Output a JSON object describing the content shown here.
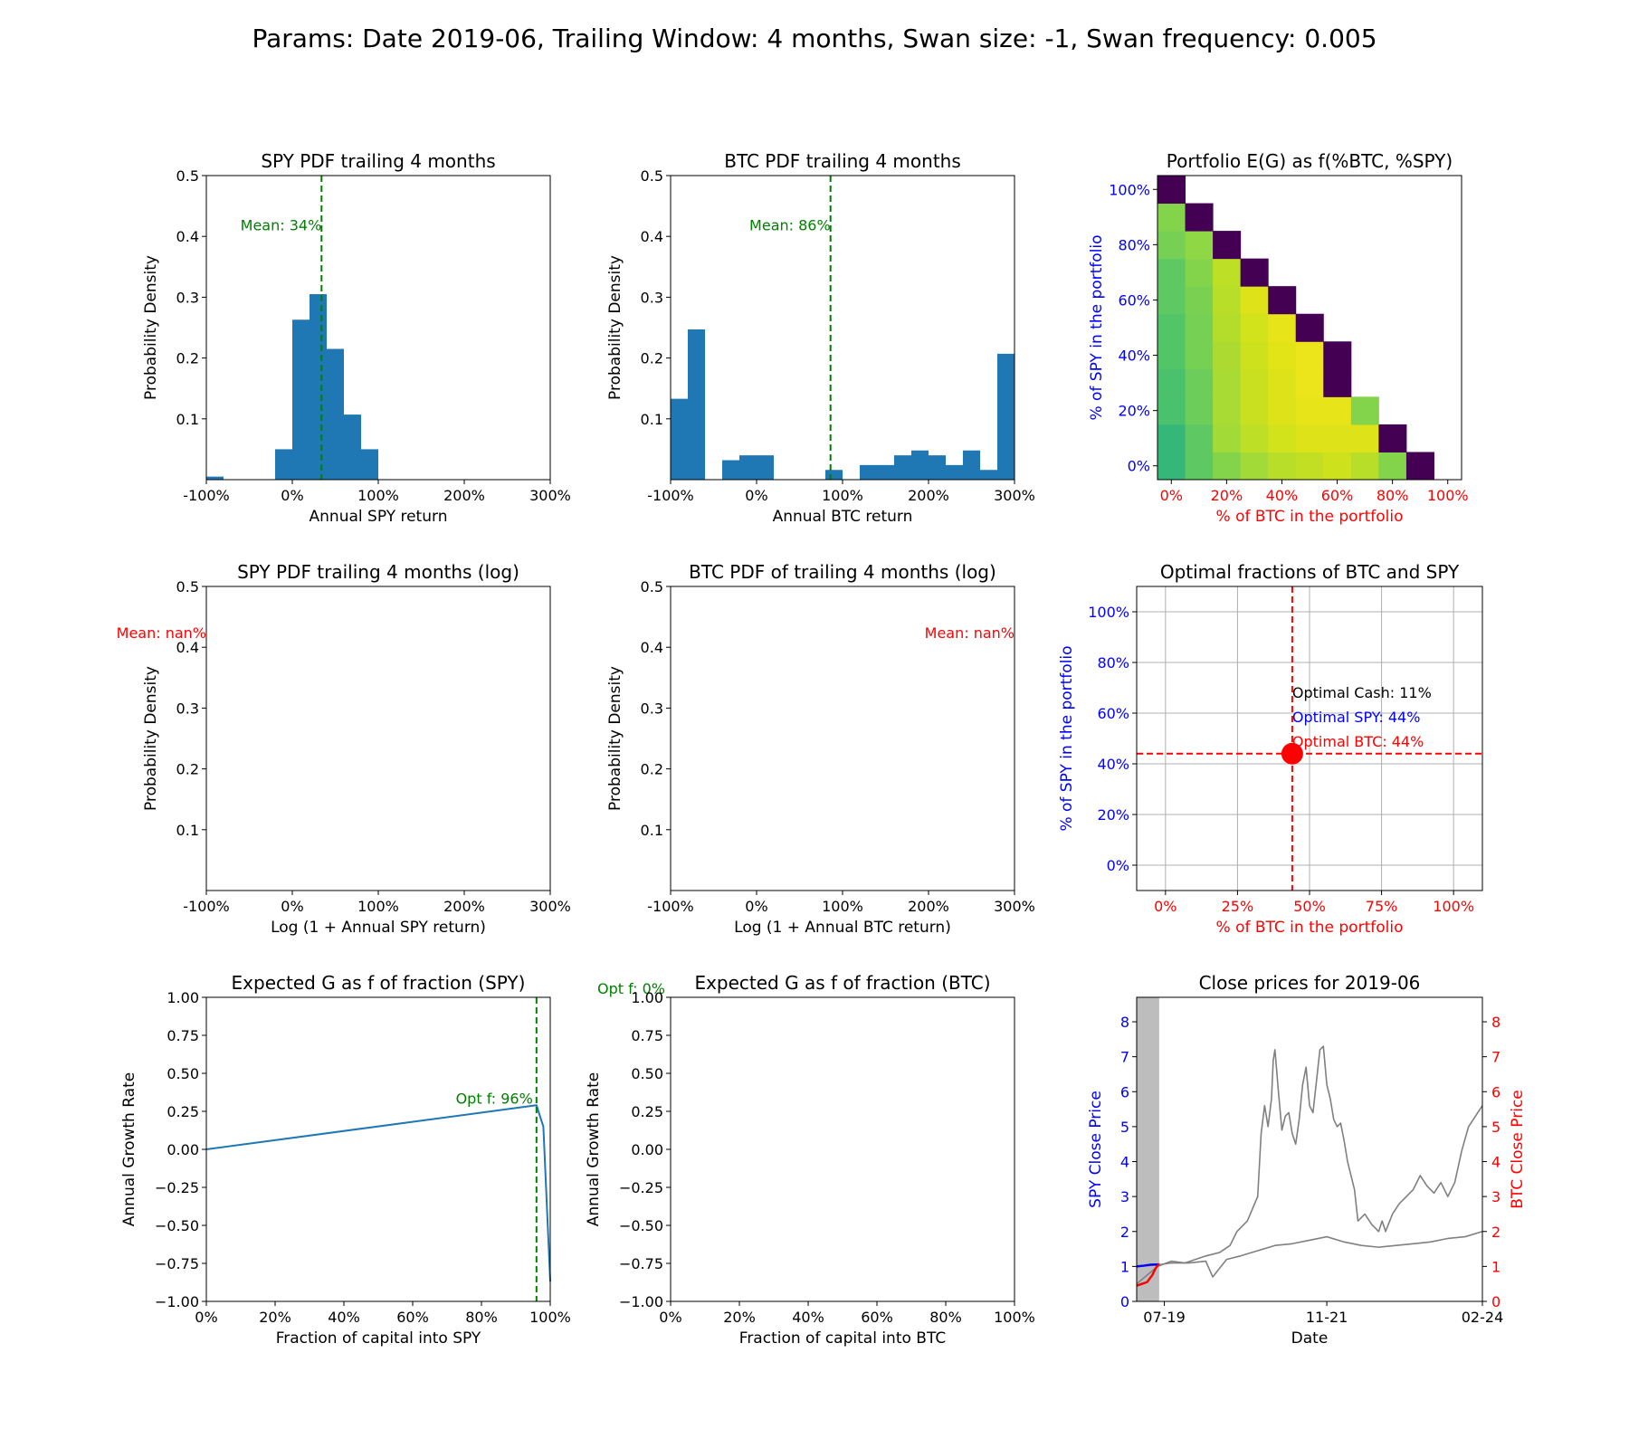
{
  "suptitle": "Params: Date 2019-06, Trailing Window:  4 months,  Swan size: -1, Swan frequency: 0.005",
  "colors": {
    "bar": "#1f77b4",
    "mean_line": "#008000",
    "nan_text": "#ff0000",
    "spy": "#0000ff",
    "btc": "#ff0000",
    "gray_series": "#808080",
    "window_shade": "#bdbdbd"
  },
  "chart_data": [
    {
      "id": "spy_pdf",
      "type": "bar",
      "title": "SPY PDF trailing 4 months",
      "xlabel": "Annual SPY return",
      "ylabel": "Probability Density",
      "xlim": [
        -1.0,
        3.0
      ],
      "ylim": [
        0,
        0.5
      ],
      "xticks": [
        -1.0,
        0.0,
        1.0,
        2.0,
        3.0
      ],
      "xtick_labels": [
        "-100%",
        "0%",
        "100%",
        "200%",
        "300%"
      ],
      "yticks": [
        0.1,
        0.2,
        0.3,
        0.4,
        0.5
      ],
      "ytick_labels": [
        "0.1",
        "0.2",
        "0.3",
        "0.4",
        "0.5"
      ],
      "bin_width": 0.2,
      "bins": [
        {
          "x0": -1.0,
          "value": 0.005
        },
        {
          "x0": -0.2,
          "value": 0.05
        },
        {
          "x0": 0.0,
          "value": 0.263
        },
        {
          "x0": 0.2,
          "value": 0.305
        },
        {
          "x0": 0.4,
          "value": 0.215
        },
        {
          "x0": 0.6,
          "value": 0.107
        },
        {
          "x0": 0.8,
          "value": 0.05
        }
      ],
      "mean_x": 0.34,
      "mean_label": "Mean: 34%"
    },
    {
      "id": "btc_pdf",
      "type": "bar",
      "title": "BTC PDF trailing 4 months",
      "xlabel": "Annual BTC return",
      "ylabel": "Probability Density",
      "xlim": [
        -1.0,
        3.0
      ],
      "ylim": [
        0,
        0.5
      ],
      "xticks": [
        -1.0,
        0.0,
        1.0,
        2.0,
        3.0
      ],
      "xtick_labels": [
        "-100%",
        "0%",
        "100%",
        "200%",
        "300%"
      ],
      "yticks": [
        0.1,
        0.2,
        0.3,
        0.4,
        0.5
      ],
      "ytick_labels": [
        "0.1",
        "0.2",
        "0.3",
        "0.4",
        "0.5"
      ],
      "bin_width": 0.2,
      "bins": [
        {
          "x0": -1.0,
          "value": 0.133
        },
        {
          "x0": -0.8,
          "value": 0.247
        },
        {
          "x0": -0.4,
          "value": 0.032
        },
        {
          "x0": -0.2,
          "value": 0.04
        },
        {
          "x0": 0.0,
          "value": 0.04
        },
        {
          "x0": 0.8,
          "value": 0.016
        },
        {
          "x0": 1.2,
          "value": 0.024
        },
        {
          "x0": 1.4,
          "value": 0.024
        },
        {
          "x0": 1.6,
          "value": 0.04
        },
        {
          "x0": 1.8,
          "value": 0.048
        },
        {
          "x0": 2.0,
          "value": 0.04
        },
        {
          "x0": 2.2,
          "value": 0.024
        },
        {
          "x0": 2.4,
          "value": 0.048
        },
        {
          "x0": 2.6,
          "value": 0.016
        },
        {
          "x0": 2.8,
          "value": 0.207
        }
      ],
      "mean_x": 0.86,
      "mean_label": "Mean: 86%"
    },
    {
      "id": "portfolio_heatmap",
      "type": "heatmap",
      "title": "Portfolio E(G) as f(%BTC, %SPY)",
      "xlabel": "% of BTC in the portfolio",
      "ylabel": "% of SPY in the portfolio",
      "xlim": [
        -0.05,
        1.05
      ],
      "ylim": [
        -0.05,
        1.05
      ],
      "ticks": [
        0.0,
        0.2,
        0.4,
        0.6,
        0.8,
        1.0
      ],
      "tick_labels": [
        "0%",
        "20%",
        "40%",
        "60%",
        "80%",
        "100%"
      ],
      "row_colors_from_spy0": [
        [
          "#35b779",
          "#5ec962",
          "#84d44b",
          "#a2da37",
          "#b8de29",
          "#c2df23",
          "#cde11d",
          "#b8de29",
          "#84d44b",
          "#440154"
        ],
        [
          "#35b779",
          "#5ec962",
          "#a2da37",
          "#bddf26",
          "#d2e21b",
          "#dde318",
          "#dde318",
          "#dde318",
          "#440154"
        ],
        [
          "#4ac16d",
          "#6ccd5a",
          "#a8db34",
          "#c8e020",
          "#dde318",
          "#e7e419",
          "#e7e419",
          "#84d44b"
        ],
        [
          "#4ac16d",
          "#6ccd5a",
          "#a8db34",
          "#c8e020",
          "#dde318",
          "#ece51b",
          "#440154"
        ],
        [
          "#52c569",
          "#75d054",
          "#adda31",
          "#cde11d",
          "#e2e418",
          "#ece51b",
          "#440154"
        ],
        [
          "#52c569",
          "#75d054",
          "#b3dc2b",
          "#d2e21b",
          "#e7e419",
          "#440154"
        ],
        [
          "#5ec962",
          "#7ad151",
          "#b8de29",
          "#dde318",
          "#440154"
        ],
        [
          "#5ec962",
          "#84d44b",
          "#bddf26",
          "#440154"
        ],
        [
          "#75d054",
          "#8fd744",
          "#440154"
        ],
        [
          "#84d44b",
          "#440154"
        ],
        [
          "#440154"
        ]
      ]
    },
    {
      "id": "spy_log_pdf",
      "type": "bar",
      "title": "SPY PDF trailing 4 months (log)",
      "xlabel": "Log (1 + Annual SPY return)",
      "ylabel": "Probability Density",
      "xlim": [
        -1.0,
        3.0
      ],
      "ylim": [
        0,
        0.5
      ],
      "xticks": [
        -1.0,
        0.0,
        1.0,
        2.0,
        3.0
      ],
      "xtick_labels": [
        "-100%",
        "0%",
        "100%",
        "200%",
        "300%"
      ],
      "yticks": [
        0.1,
        0.2,
        0.3,
        0.4,
        0.5
      ],
      "ytick_labels": [
        "0.1",
        "0.2",
        "0.3",
        "0.4",
        "0.5"
      ],
      "bins": [],
      "mean_label": "Mean: nan%"
    },
    {
      "id": "btc_log_pdf",
      "type": "bar",
      "title": "BTC PDF of trailing 4 months (log)",
      "xlabel": "Log (1 + Annual BTC return)",
      "ylabel": "Probability Density",
      "xlim": [
        -1.0,
        3.0
      ],
      "ylim": [
        0,
        0.5
      ],
      "xticks": [
        -1.0,
        0.0,
        1.0,
        2.0,
        3.0
      ],
      "xtick_labels": [
        "-100%",
        "0%",
        "100%",
        "200%",
        "300%"
      ],
      "yticks": [
        0.1,
        0.2,
        0.3,
        0.4,
        0.5
      ],
      "ytick_labels": [
        "0.1",
        "0.2",
        "0.3",
        "0.4",
        "0.5"
      ],
      "bins": [],
      "mean_label": "Mean: nan%"
    },
    {
      "id": "optimal_fractions",
      "type": "scatter",
      "title": "Optimal fractions of BTC and SPY",
      "xlabel": "% of BTC in the portfolio",
      "ylabel": "% of SPY in the portfolio",
      "xlim": [
        -0.1,
        1.1
      ],
      "ylim": [
        -0.1,
        1.1
      ],
      "xticks": [
        0.0,
        0.25,
        0.5,
        0.75,
        1.0
      ],
      "xtick_labels": [
        "0%",
        "25%",
        "50%",
        "75%",
        "100%"
      ],
      "yticks": [
        0.0,
        0.2,
        0.4,
        0.6,
        0.8,
        1.0
      ],
      "ytick_labels": [
        "0%",
        "20%",
        "40%",
        "60%",
        "80%",
        "100%"
      ],
      "grid": true,
      "point": {
        "x": 0.44,
        "y": 0.44
      },
      "annotations": [
        "Optimal Cash: 11%",
        "Optimal SPY: 44%",
        "Optimal BTC: 44%"
      ]
    },
    {
      "id": "expected_g_spy",
      "type": "line",
      "title": "Expected G as f of fraction (SPY)",
      "xlabel": "Fraction of capital into SPY",
      "ylabel": "Annual Growth Rate",
      "xlim": [
        0.0,
        1.0
      ],
      "ylim": [
        -1.0,
        1.0
      ],
      "xticks": [
        0.0,
        0.2,
        0.4,
        0.6,
        0.8,
        1.0
      ],
      "xtick_labels": [
        "0%",
        "20%",
        "40%",
        "60%",
        "80%",
        "100%"
      ],
      "yticks": [
        1.0,
        0.75,
        0.5,
        0.25,
        0.0,
        -0.25,
        -0.5,
        -0.75,
        -1.0
      ],
      "ytick_labels": [
        "1.00",
        "0.75",
        "0.50",
        "0.25",
        "0.00",
        "−0.25",
        "−0.50",
        "−0.75",
        "−1.00"
      ],
      "x": [
        0.0,
        0.96,
        0.98,
        1.0
      ],
      "y": [
        0.0,
        0.29,
        0.15,
        -0.87
      ],
      "opt_x": 0.96,
      "opt_label": "Opt f: 96%"
    },
    {
      "id": "expected_g_btc",
      "type": "line",
      "title": "Expected G as f of fraction (BTC)",
      "xlabel": "Fraction of capital into BTC",
      "ylabel": "Annual Growth Rate",
      "xlim": [
        0.0,
        1.0
      ],
      "ylim": [
        -1.0,
        1.0
      ],
      "xticks": [
        0.0,
        0.2,
        0.4,
        0.6,
        0.8,
        1.0
      ],
      "xtick_labels": [
        "0%",
        "20%",
        "40%",
        "60%",
        "80%",
        "100%"
      ],
      "yticks": [
        1.0,
        0.75,
        0.5,
        0.25,
        0.0,
        -0.25,
        -0.5,
        -0.75,
        -1.0
      ],
      "ytick_labels": [
        "1.00",
        "0.75",
        "0.50",
        "0.25",
        "0.00",
        "−0.25",
        "−0.50",
        "−0.75",
        "−1.00"
      ],
      "x": [],
      "y": [],
      "opt_label": "Opt f: 0%"
    },
    {
      "id": "close_prices",
      "type": "line",
      "title": "Close prices for 2019-06",
      "xlabel": "Date",
      "ylabel_left": "SPY Close Price",
      "ylabel_right": "BTC Close Price",
      "xlim": [
        0.0,
        1.0
      ],
      "ylim": [
        0,
        8.7
      ],
      "yticks": [
        0,
        1,
        2,
        3,
        4,
        5,
        6,
        7,
        8
      ],
      "ytick_labels": [
        "0",
        "1",
        "2",
        "3",
        "4",
        "5",
        "6",
        "7",
        "8"
      ],
      "xticks": [
        0.08,
        0.55,
        1.0
      ],
      "xtick_labels": [
        "07-19",
        "11-21",
        "02-24"
      ],
      "window_shade": [
        0.0,
        0.065
      ],
      "series": [
        {
          "name": "BTC",
          "color": "gray",
          "x": [
            0.0,
            0.06,
            0.1,
            0.14,
            0.17,
            0.2,
            0.24,
            0.27,
            0.29,
            0.32,
            0.35,
            0.36,
            0.37,
            0.38,
            0.39,
            0.395,
            0.4,
            0.41,
            0.42,
            0.43,
            0.44,
            0.45,
            0.46,
            0.47,
            0.48,
            0.49,
            0.5,
            0.51,
            0.52,
            0.53,
            0.54,
            0.55,
            0.56,
            0.57,
            0.58,
            0.59,
            0.6,
            0.61,
            0.62,
            0.63,
            0.64,
            0.66,
            0.68,
            0.7,
            0.71,
            0.72,
            0.74,
            0.76,
            0.78,
            0.8,
            0.82,
            0.84,
            0.86,
            0.88,
            0.9,
            0.92,
            0.94,
            0.96,
            0.98,
            1.0
          ],
          "y": [
            0.5,
            1.0,
            1.15,
            1.1,
            1.2,
            1.3,
            1.4,
            1.6,
            2.0,
            2.3,
            3.0,
            4.8,
            5.6,
            5.0,
            5.8,
            6.9,
            7.2,
            6.0,
            4.9,
            5.3,
            5.4,
            4.8,
            4.5,
            5.2,
            6.2,
            6.7,
            5.6,
            5.4,
            6.3,
            7.2,
            7.3,
            6.2,
            5.8,
            5.2,
            5.0,
            5.1,
            4.6,
            4.0,
            3.6,
            3.2,
            2.3,
            2.5,
            2.2,
            2.0,
            2.3,
            2.0,
            2.5,
            2.8,
            3.0,
            3.2,
            3.6,
            3.3,
            3.1,
            3.4,
            3.0,
            3.4,
            4.3,
            5.0,
            5.3,
            5.6
          ]
        },
        {
          "name": "SPY",
          "color": "gray",
          "x": [
            0.0,
            0.06,
            0.1,
            0.15,
            0.2,
            0.22,
            0.24,
            0.26,
            0.3,
            0.35,
            0.4,
            0.45,
            0.5,
            0.55,
            0.6,
            0.65,
            0.7,
            0.75,
            0.8,
            0.85,
            0.9,
            0.95,
            1.0
          ],
          "y": [
            1.0,
            1.04,
            1.1,
            1.1,
            1.15,
            0.7,
            0.95,
            1.2,
            1.3,
            1.45,
            1.6,
            1.65,
            1.75,
            1.85,
            1.7,
            1.6,
            1.55,
            1.6,
            1.65,
            1.7,
            1.8,
            1.85,
            2.0
          ]
        },
        {
          "name": "SPY window",
          "color": "blue",
          "x": [
            0.0,
            0.02,
            0.04,
            0.065
          ],
          "y": [
            1.0,
            1.02,
            1.05,
            1.06
          ]
        },
        {
          "name": "BTC window",
          "color": "red",
          "x": [
            0.0,
            0.015,
            0.03,
            0.045,
            0.055,
            0.065
          ],
          "y": [
            0.45,
            0.5,
            0.55,
            0.75,
            0.95,
            1.08
          ]
        }
      ]
    }
  ]
}
